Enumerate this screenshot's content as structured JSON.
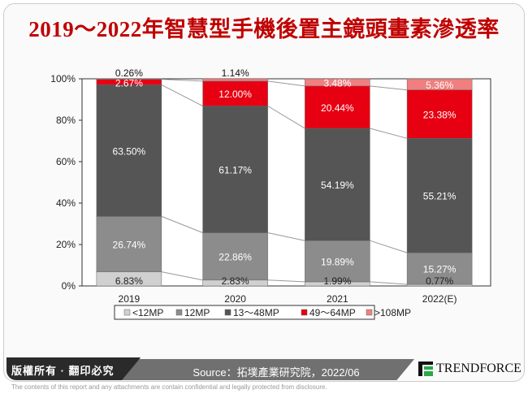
{
  "title": "2019～2022年智慧型手機後置主鏡頭畫素滲透率",
  "chart_data": {
    "type": "bar",
    "stacked": true,
    "title": "2019～2022年智慧型手機後置主鏡頭畫素滲透率",
    "categories": [
      "2019",
      "2020",
      "2021",
      "2022(E)"
    ],
    "series": [
      {
        "name": "<12MP",
        "values": [
          6.83,
          2.83,
          1.99,
          0.77
        ],
        "color": "#d0d0d0",
        "label_color": "#222222"
      },
      {
        "name": "12MP",
        "values": [
          26.74,
          22.86,
          19.89,
          15.27
        ],
        "color": "#8c8c8c",
        "label_color": "#ffffff"
      },
      {
        "name": "13～48MP",
        "values": [
          63.5,
          61.17,
          54.19,
          55.21
        ],
        "color": "#555555",
        "label_color": "#ffffff"
      },
      {
        "name": "49～64MP",
        "values": [
          2.67,
          12.0,
          20.44,
          23.38
        ],
        "color": "#e60012",
        "label_color": "#ffffff"
      },
      {
        "name": ">108MP",
        "values": [
          0.26,
          1.14,
          3.48,
          5.36
        ],
        "color": "#f08080",
        "label_color": "#ffffff"
      }
    ],
    "data_labels": [
      [
        "6.83%",
        "2.83%",
        "1.99%",
        "0.77%"
      ],
      [
        "26.74%",
        "22.86%",
        "19.89%",
        "15.27%"
      ],
      [
        "63.50%",
        "61.17%",
        "54.19%",
        "55.21%"
      ],
      [
        "2.67%",
        "12.00%",
        "20.44%",
        "23.38%"
      ],
      [
        "0.26%",
        "1.14%",
        "3.48%",
        "5.36%"
      ]
    ],
    "yticks": [
      "0%",
      "20%",
      "40%",
      "60%",
      "80%",
      "100%"
    ],
    "ylim": [
      0,
      100
    ],
    "xlabel": "",
    "ylabel": "",
    "grid": false,
    "legend": "bottom",
    "series_lines": true
  },
  "footer": {
    "copyright": "版權所有 · 翻印必究",
    "source": "Source：拓墣產業研究院，2022/06",
    "logo": "TRENDFORCE",
    "disclaimer": "The contents of this report and any attachments are contain confidential and legally protected from disclosure."
  }
}
